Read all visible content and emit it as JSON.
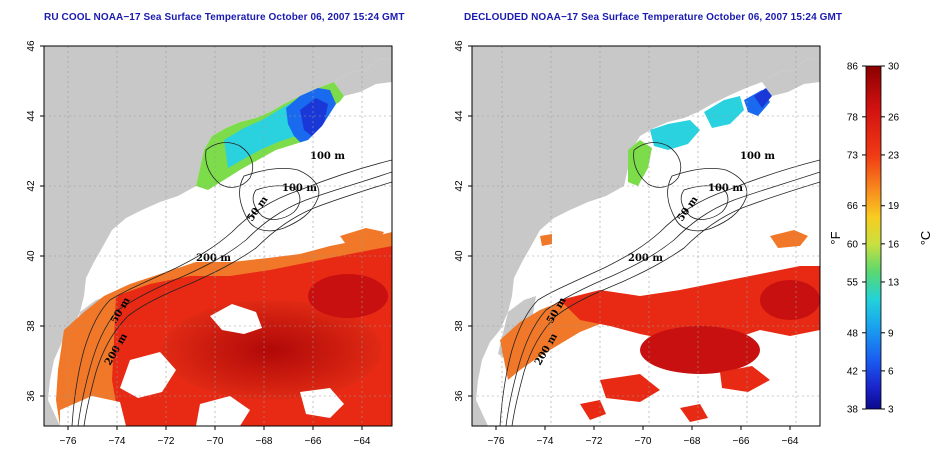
{
  "panels": [
    {
      "title": "RU COOL NOAA−17 Sea Surface Temperature October 06, 2007 15:24 GMT",
      "variant": "cool"
    },
    {
      "title": "DECLOUDED NOAA−17 Sea Surface Temperature October 06, 2007 15:24 GMT",
      "variant": "declouded"
    }
  ],
  "axes": {
    "lon_ticks": [
      "−76",
      "−74",
      "−72",
      "−70",
      "−68",
      "−66",
      "−64"
    ],
    "lat_ticks": [
      "46",
      "44",
      "42",
      "40",
      "38",
      "36"
    ],
    "lon_range": [
      -77,
      -63
    ],
    "lat_range": [
      35,
      46
    ]
  },
  "contour_labels": {
    "left": [
      "100 m",
      "100 m",
      "50 m",
      "200 m",
      "50 m",
      "200 m"
    ],
    "right": [
      "100 m",
      "100 m",
      "50 m",
      "200 m",
      "50 m",
      "200 m"
    ]
  },
  "colorbar": {
    "fahrenheit": [
      "86",
      "78",
      "73",
      "66",
      "60",
      "55",
      "48",
      "42",
      "38"
    ],
    "celsius": [
      "30",
      "26",
      "23",
      "19",
      "16",
      "13",
      "9",
      "6",
      "3"
    ],
    "f_unit": "°F",
    "c_unit": "°C",
    "range_c": [
      3,
      30
    ]
  },
  "colors": {
    "land": "#c8c8c8",
    "cloud": "#ffffff",
    "warm_dark": "#c81010",
    "warm_red": "#e82a14",
    "warm_orange": "#f07828",
    "cool_green": "#7ddc4a",
    "cool_cyan": "#2ad2e0",
    "cold_blue": "#1a4ae8",
    "title": "#1a1ab0"
  }
}
